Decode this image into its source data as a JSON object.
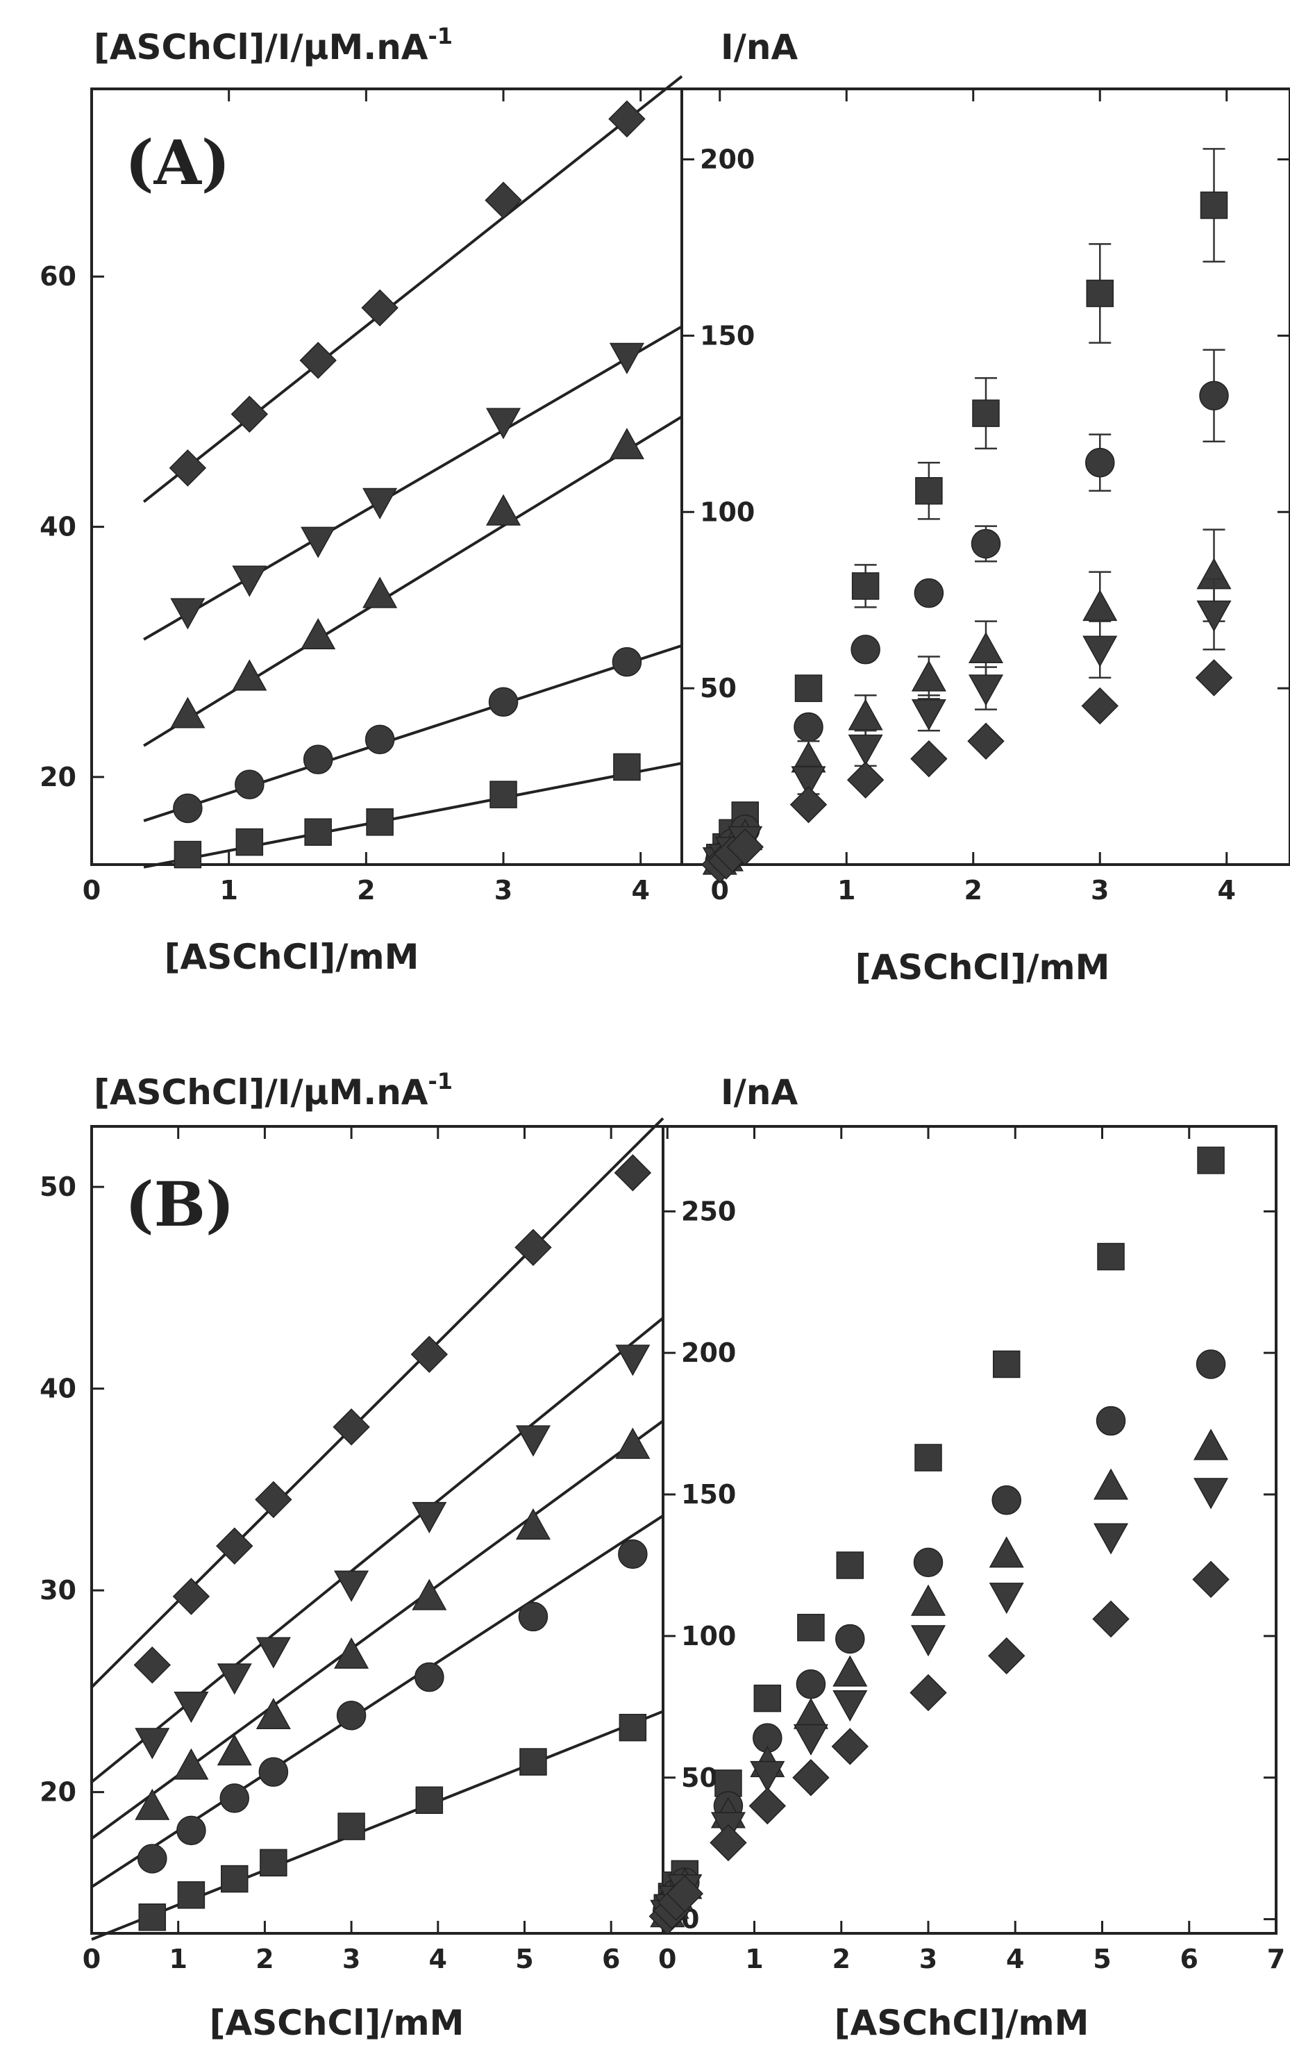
{
  "chart_data": [
    {
      "id": "A-left",
      "type": "line",
      "panel_label": "(A)",
      "ylabel": "[ASChCl]/I/µM.nA",
      "ylabel_sup": "-1",
      "xlabel": "[ASChCl]/mM",
      "xlim": [
        0,
        4.3
      ],
      "ylim": [
        13,
        75
      ],
      "xticks": [
        0,
        1,
        2,
        3,
        4
      ],
      "yticks": [
        20,
        40,
        60
      ],
      "x": [
        0.7,
        1.15,
        1.65,
        2.1,
        3.0,
        3.9
      ],
      "series": [
        {
          "marker": "diamond",
          "values": [
            44.7,
            49.0,
            53.3,
            57.5,
            66.1,
            72.6
          ],
          "fit": [
            0.38,
            42.0,
            4.3,
            76.0
          ]
        },
        {
          "marker": "triangle-down",
          "values": [
            33.2,
            35.8,
            38.9,
            42.0,
            48.4,
            53.6
          ],
          "fit": [
            0.38,
            31.0,
            4.3,
            56.0
          ]
        },
        {
          "marker": "triangle-up",
          "values": [
            25.0,
            28.0,
            31.3,
            34.6,
            41.2,
            46.5
          ],
          "fit": [
            0.38,
            22.5,
            4.3,
            48.8
          ]
        },
        {
          "marker": "circle",
          "values": [
            17.5,
            19.4,
            21.4,
            23.0,
            26.0,
            29.2
          ],
          "fit": [
            0.38,
            16.5,
            4.3,
            30.5
          ]
        },
        {
          "marker": "square",
          "values": [
            13.8,
            14.8,
            15.6,
            16.4,
            18.6,
            20.8
          ],
          "fit": [
            0.38,
            12.8,
            4.3,
            21.1
          ]
        }
      ]
    },
    {
      "id": "A-right",
      "type": "scatter",
      "ylabel": "I/nA",
      "xlabel": "[ASChCl]/mM",
      "xlim": [
        -0.3,
        4.5
      ],
      "ylim": [
        0,
        220
      ],
      "xticks": [
        0,
        1,
        2,
        3,
        4
      ],
      "yticks": [
        50,
        100,
        150,
        200
      ],
      "x": [
        0,
        0.05,
        0.1,
        0.2,
        0.7,
        1.15,
        1.65,
        2.1,
        3.0,
        3.9
      ],
      "series": [
        {
          "marker": "square",
          "values": [
            2,
            5,
            9,
            14,
            50,
            79,
            106,
            128,
            162,
            187
          ],
          "err": [
            0,
            0,
            0,
            0,
            0,
            6,
            8,
            10,
            14,
            16
          ]
        },
        {
          "marker": "circle",
          "values": [
            1,
            3,
            6,
            10,
            39,
            61,
            77,
            91,
            114,
            133
          ],
          "err": [
            0,
            0,
            0,
            0,
            0,
            0,
            0,
            5,
            8,
            13
          ]
        },
        {
          "marker": "triangle-up",
          "values": [
            1,
            2,
            5,
            8,
            30,
            42,
            53,
            61,
            73,
            82
          ],
          "err": [
            0,
            0,
            0,
            0,
            5,
            6,
            6,
            8,
            10,
            13
          ]
        },
        {
          "marker": "triangle-down",
          "values": [
            1,
            2,
            4,
            7,
            24,
            33,
            43,
            50,
            61,
            71
          ],
          "err": [
            0,
            0,
            0,
            0,
            4,
            5,
            5,
            6,
            8,
            10
          ]
        },
        {
          "marker": "diamond",
          "values": [
            0,
            1,
            3,
            5,
            17,
            24,
            30,
            35,
            45,
            53
          ],
          "err": [
            0,
            0,
            0,
            0,
            0,
            0,
            0,
            0,
            0,
            0
          ]
        }
      ]
    },
    {
      "id": "B-left",
      "type": "line",
      "panel_label": "(B)",
      "ylabel": "[ASChCl]/I/µM.nA",
      "ylabel_sup": "-1",
      "xlabel": "[ASChCl]/mM",
      "xlim": [
        0,
        6.6
      ],
      "ylim": [
        13,
        53
      ],
      "xticks": [
        0,
        1,
        2,
        3,
        4,
        5,
        6
      ],
      "yticks": [
        20,
        30,
        40,
        50
      ],
      "x": [
        0.7,
        1.15,
        1.65,
        2.1,
        3.0,
        3.9,
        5.1,
        6.25
      ],
      "series": [
        {
          "marker": "diamond",
          "values": [
            26.3,
            29.7,
            32.2,
            34.5,
            38.1,
            41.7,
            47.0,
            50.7
          ],
          "fit": [
            0.0,
            25.2,
            6.6,
            53.4
          ]
        },
        {
          "marker": "triangle-down",
          "values": [
            22.5,
            24.3,
            25.7,
            27.0,
            30.3,
            33.7,
            37.5,
            41.5
          ],
          "fit": [
            0.0,
            20.5,
            6.6,
            43.5
          ]
        },
        {
          "marker": "triangle-up",
          "values": [
            19.3,
            21.3,
            22.0,
            23.8,
            26.8,
            29.7,
            33.2,
            37.2
          ],
          "fit": [
            0.0,
            17.7,
            6.6,
            38.4
          ]
        },
        {
          "marker": "circle",
          "values": [
            16.7,
            18.1,
            19.7,
            21.0,
            23.8,
            25.7,
            28.7,
            31.8
          ],
          "fit": [
            0.0,
            15.3,
            6.6,
            33.7
          ]
        },
        {
          "marker": "square",
          "values": [
            13.8,
            14.9,
            15.7,
            16.5,
            18.3,
            19.6,
            21.5,
            23.2
          ],
          "fit": [
            0.0,
            12.7,
            6.6,
            24.0
          ]
        }
      ]
    },
    {
      "id": "B-right",
      "type": "scatter",
      "ylabel": "I/nA",
      "xlabel": "[ASChCl]/mM",
      "xlim": [
        -0.05,
        7
      ],
      "ylim": [
        -5,
        280
      ],
      "xticks": [
        0,
        1,
        2,
        3,
        4,
        5,
        6,
        7
      ],
      "yticks": [
        0,
        50,
        100,
        150,
        200,
        250
      ],
      "x": [
        0,
        0.05,
        0.1,
        0.2,
        0.7,
        1.15,
        1.65,
        2.1,
        3.0,
        3.9,
        5.1,
        6.25
      ],
      "series": [
        {
          "marker": "square",
          "values": [
            4,
            8,
            12,
            16,
            48,
            78,
            103,
            125,
            163,
            196,
            234,
            268
          ]
        },
        {
          "marker": "circle",
          "values": [
            3,
            6,
            9,
            13,
            40,
            64,
            83,
            99,
            126,
            148,
            176,
            196
          ]
        },
        {
          "marker": "triangle-up",
          "values": [
            2,
            5,
            8,
            12,
            37,
            55,
            72,
            87,
            112,
            129,
            153,
            167
          ]
        },
        {
          "marker": "triangle-down",
          "values": [
            2,
            4,
            7,
            11,
            33,
            51,
            64,
            76,
            99,
            114,
            135,
            151
          ]
        },
        {
          "marker": "diamond",
          "values": [
            1,
            3,
            6,
            9,
            27,
            40,
            50,
            61,
            80,
            93,
            106,
            120
          ]
        }
      ]
    }
  ]
}
